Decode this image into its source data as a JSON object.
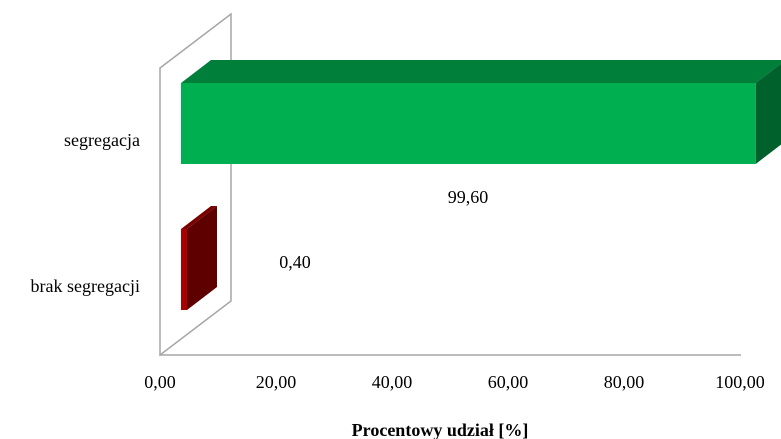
{
  "chart_data": {
    "type": "bar",
    "orientation": "horizontal",
    "categories": [
      "segregacja",
      "brak segregacji"
    ],
    "values": [
      99.6,
      0.4
    ],
    "value_labels": [
      "99,60",
      "0,40"
    ],
    "xlabel": "Procentowy udział [%]",
    "ylabel": "",
    "xlim": [
      0,
      100
    ],
    "x_ticks": [
      "0,00",
      "20,00",
      "40,00",
      "60,00",
      "80,00",
      "100,00"
    ],
    "grid": false,
    "legend": "none",
    "style": "3d",
    "colors": {
      "segregacja": "#00b050",
      "brak segregacji": "#aa0000"
    }
  }
}
